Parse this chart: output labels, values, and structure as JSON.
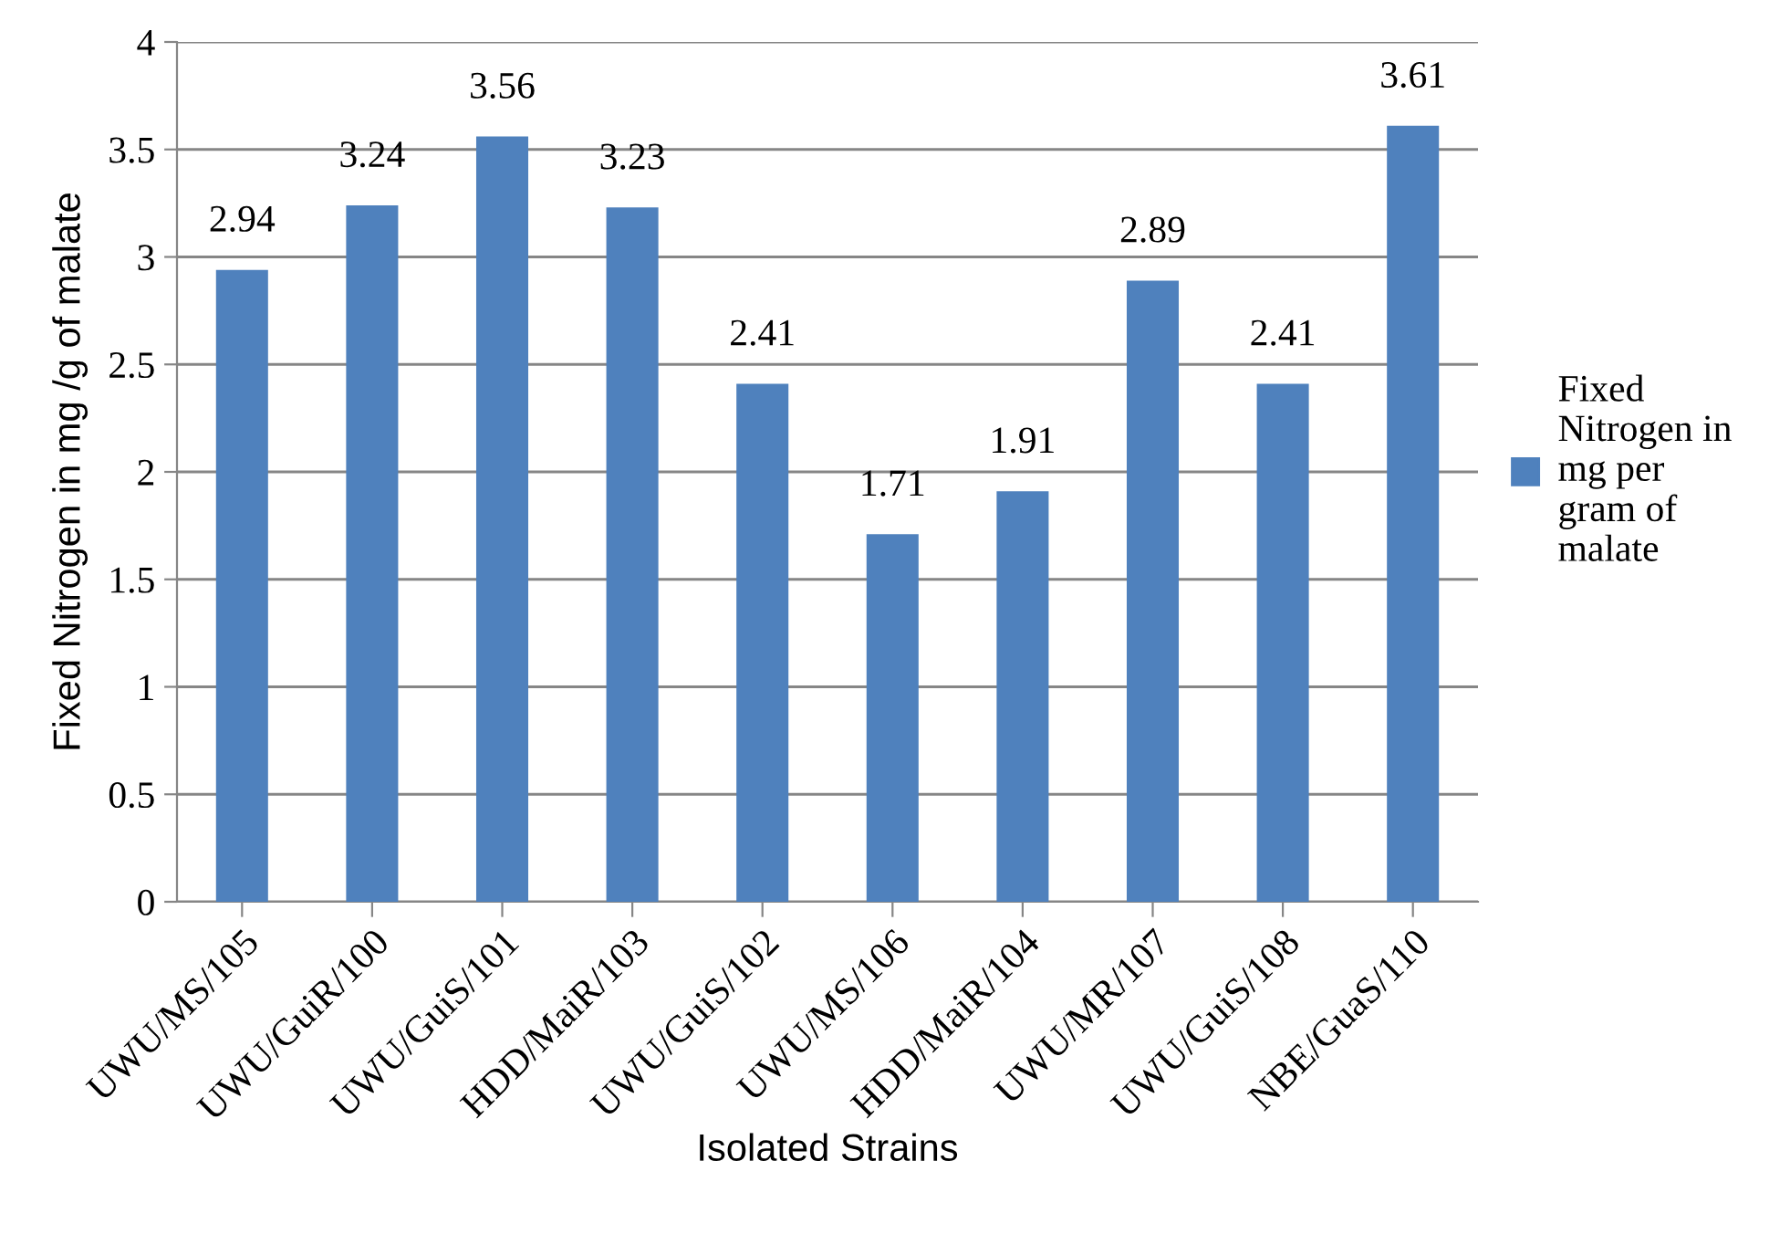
{
  "chart_data": {
    "type": "bar",
    "xlabel": "Isolated Strains",
    "ylabel": "Fixed Nitrogen in mg /g of malate",
    "categories": [
      "UWU/MS/105",
      "UWU/GuiR/100",
      "UWU/GuiS/101",
      "HDD/MaiR/103",
      "UWU/GuiS/102",
      "UWU/MS/106",
      "HDD/MaiR/104",
      "UWU/MR/107",
      "UWU/GuiS/108",
      "NBE/GuaS/110"
    ],
    "series": [
      {
        "name": "Fixed Nitrogen in mg per gram of malate",
        "color": "#4f81bd",
        "values": [
          2.94,
          3.24,
          3.56,
          3.23,
          2.41,
          1.71,
          1.91,
          2.89,
          2.41,
          3.61
        ]
      }
    ],
    "ylim": [
      0,
      4
    ],
    "yticks": [
      0,
      0.5,
      1,
      1.5,
      2,
      2.5,
      3,
      3.5,
      4
    ],
    "grid": "y",
    "legend": "right",
    "data_labels": true
  }
}
